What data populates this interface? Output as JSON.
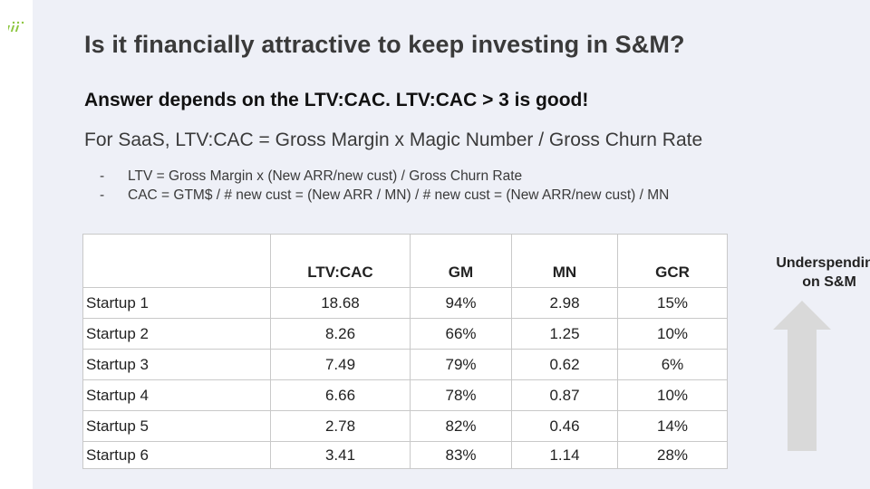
{
  "title": "Is it financially attractive to keep investing in S&M?",
  "subtitle": "Answer depends on the LTV:CAC. LTV:CAC  > 3 is good!",
  "formula": "For SaaS, LTV:CAC = Gross Margin x Magic Number / Gross Churn Rate",
  "bullets": [
    {
      "marker": "-",
      "text": "LTV = Gross Margin x (New ARR/new cust) / Gross Churn Rate"
    },
    {
      "marker": "-",
      "text": "CAC = GTM$ / # new cust = (New ARR / MN) / # new cust = (New ARR/new cust) / MN"
    }
  ],
  "table": {
    "headers": [
      "",
      "LTV:CAC",
      "GM",
      "MN",
      "GCR"
    ],
    "rows": [
      [
        "Startup 1",
        "18.68",
        "94%",
        "2.98",
        "15%"
      ],
      [
        "Startup 2",
        "8.26",
        "66%",
        "1.25",
        "10%"
      ],
      [
        "Startup 3",
        "7.49",
        "79%",
        "0.62",
        "6%"
      ],
      [
        "Startup 4",
        "6.66",
        "78%",
        "0.87",
        "10%"
      ],
      [
        "Startup 5",
        "2.78",
        "82%",
        "0.46",
        "14%"
      ],
      [
        "Startup 6",
        "3.41",
        "83%",
        "1.14",
        "28%"
      ]
    ]
  },
  "note": {
    "line1": "Underspending",
    "line2": "on S&M"
  },
  "colors": {
    "background": "#eef0f7",
    "logo_accent": "#8cc63f",
    "arrow_fill": "#d9d9d9",
    "title_text": "#3a3a3a"
  },
  "icons": {
    "logo": "logo-mark-icon",
    "arrow": "up-arrow-icon"
  }
}
